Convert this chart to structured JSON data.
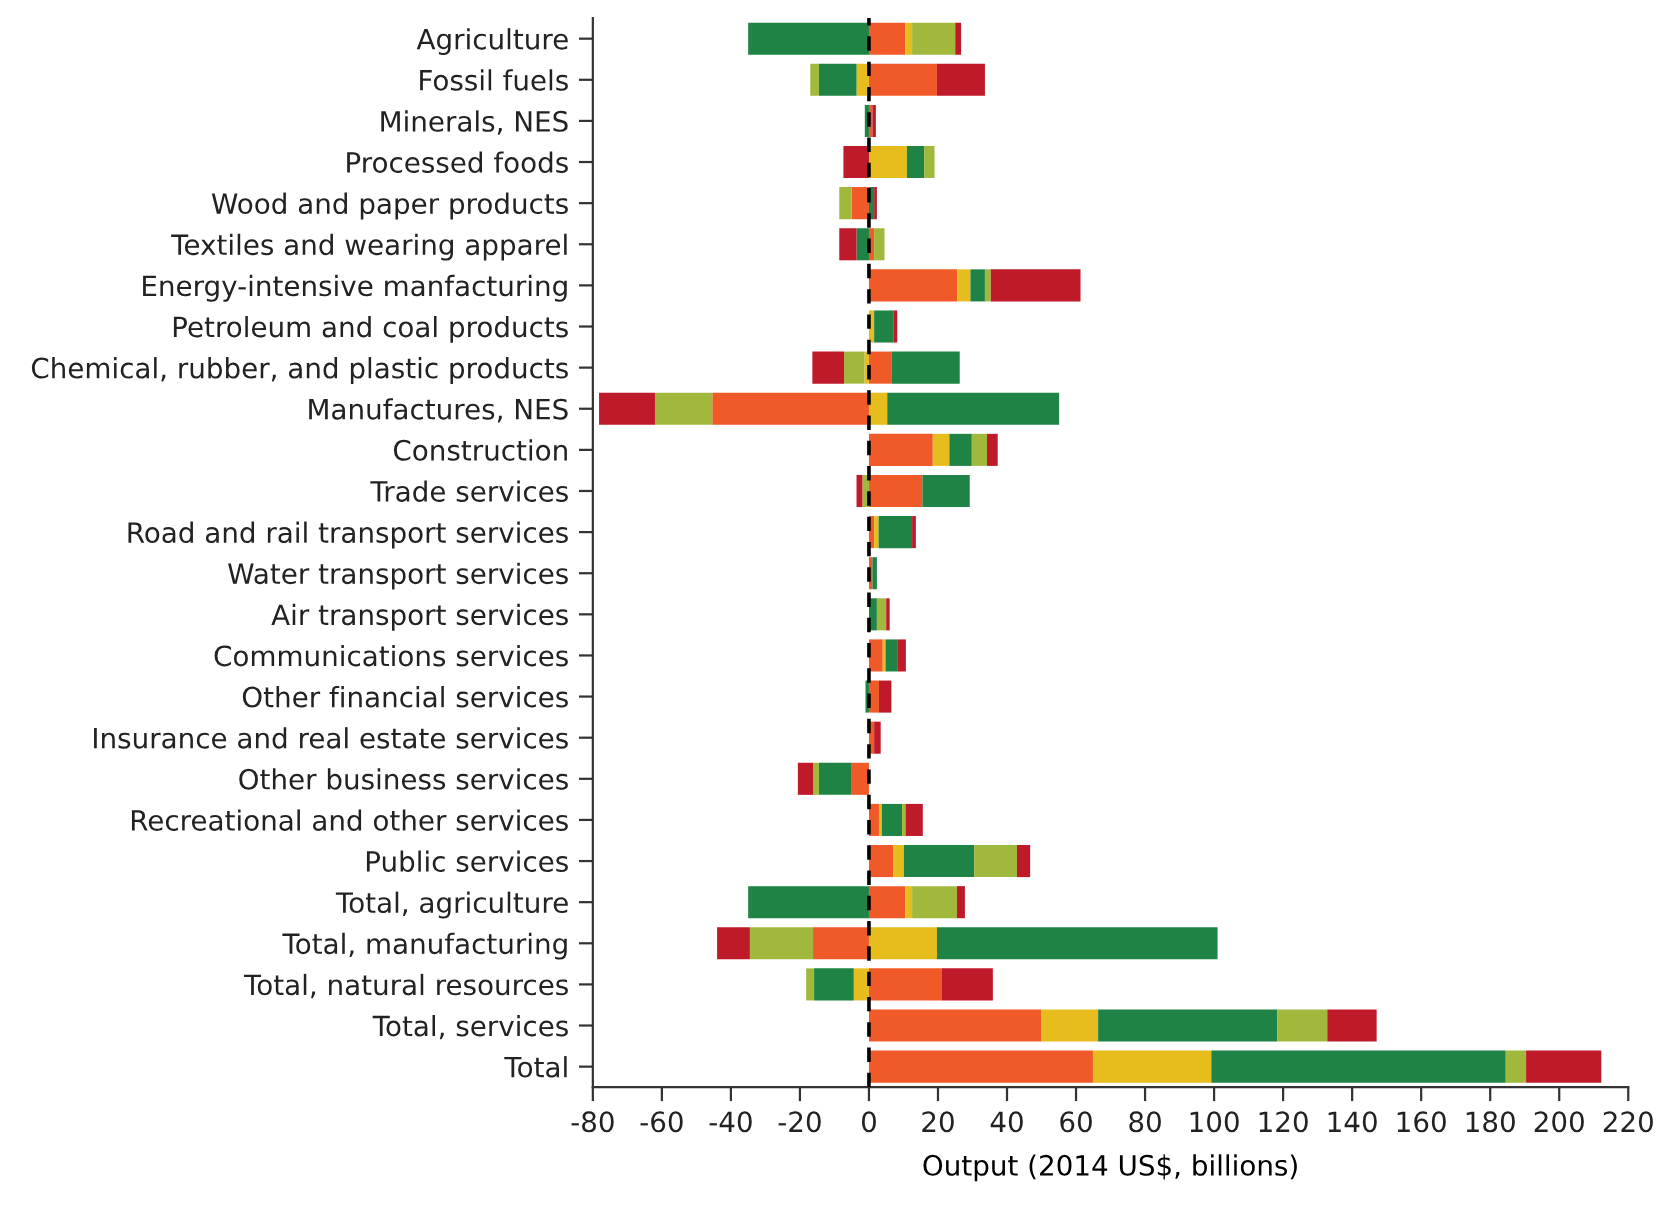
{
  "chart_data": {
    "type": "bar",
    "orientation": "horizontal",
    "stacked": true,
    "xlabel": "Output (2014 US$, billions)",
    "categories": [
      "Agriculture",
      "Fossil fuels",
      "Minerals, NES",
      "Processed foods",
      "Wood and paper products",
      "Textiles and wearing apparel",
      "Energy-intensive manfacturing",
      "Petroleum and coal products",
      "Chemical, rubber, and plastic products",
      "Manufactures, NES",
      "Construction",
      "Trade services",
      "Road and rail transport services",
      "Water transport services",
      "Air transport services",
      "Communications services",
      "Other financial services",
      "Insurance and real estate services",
      "Other business services",
      "Recreational and other services",
      "Public services",
      "Total, agriculture",
      "Total, manufacturing",
      "Total, natural resources",
      "Total, services",
      "Total"
    ],
    "series": [
      {
        "color": "#f05a28",
        "values": [
          10.5,
          19.7,
          1,
          null,
          -5,
          1.5,
          25.6,
          null,
          6.5,
          -45.4,
          18.5,
          15.5,
          1.5,
          1,
          null,
          4,
          2.9,
          1.5,
          -5,
          2.9,
          7.1,
          10.5,
          -16.2,
          21,
          50,
          64.9
        ]
      },
      {
        "color": "#e6bd1c",
        "values": [
          2,
          -3.6,
          null,
          11,
          null,
          null,
          3.8,
          1.5,
          -1.3,
          5.3,
          4.8,
          null,
          1.3,
          null,
          null,
          0.8,
          null,
          null,
          null,
          0.8,
          3,
          2,
          19.7,
          -4.4,
          16.4,
          34.3
        ]
      },
      {
        "color": "#1e8345",
        "values": [
          -35,
          -10.9,
          -1.2,
          5,
          1.5,
          -3.6,
          4.2,
          5.7,
          19.8,
          49.8,
          6.5,
          13.7,
          9.7,
          1.3,
          2.3,
          3.4,
          -1,
          null,
          -9.5,
          5.9,
          20.4,
          -35,
          81.3,
          -11.5,
          51.9,
          85.3
        ]
      },
      {
        "color": "#a0b83c",
        "values": [
          12.5,
          -2.5,
          null,
          3,
          -3.6,
          3,
          1.7,
          null,
          -5.9,
          -16.6,
          4.4,
          -1.9,
          null,
          null,
          2.7,
          null,
          null,
          null,
          -1.7,
          1,
          12.4,
          13,
          -18.3,
          -2.3,
          14.5,
          5.9
        ]
      },
      {
        "color": "#bf1a2a",
        "values": [
          1.7,
          13.9,
          1,
          -7.4,
          0.8,
          -5,
          26,
          1,
          -9.2,
          -16.2,
          3.1,
          -1.7,
          1.1,
          null,
          1,
          2.5,
          3.6,
          1.9,
          -4.4,
          5,
          3.8,
          2.3,
          -9.5,
          14.9,
          14.3,
          21.8
        ]
      }
    ],
    "xlim": [
      -80,
      220
    ],
    "xticks": [
      -80,
      -60,
      -40,
      -20,
      0,
      20,
      40,
      60,
      80,
      100,
      120,
      140,
      160,
      180,
      200,
      220
    ],
    "ref_lines": [
      {
        "axis": "x",
        "value": 0,
        "color": "#000000",
        "line_style": "dashed"
      }
    ],
    "grid": false,
    "legend": false
  }
}
